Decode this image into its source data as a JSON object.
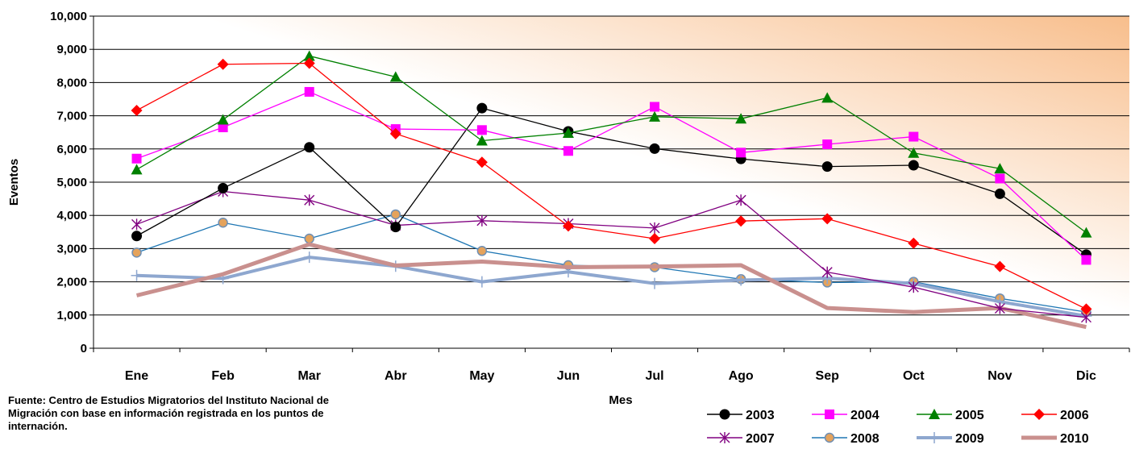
{
  "chart_data": {
    "type": "line",
    "xlabel": "Mes",
    "ylabel": "Eventos",
    "ylim": [
      0,
      10000
    ],
    "yticks": [
      "0",
      "1,000",
      "2,000",
      "3,000",
      "4,000",
      "5,000",
      "6,000",
      "7,000",
      "8,000",
      "9,000",
      "10,000"
    ],
    "ytick_values": [
      0,
      1000,
      2000,
      3000,
      4000,
      5000,
      6000,
      7000,
      8000,
      9000,
      10000
    ],
    "categories": [
      "Ene",
      "Feb",
      "Mar",
      "Abr",
      "May",
      "Jun",
      "Jul",
      "Ago",
      "Sep",
      "Oct",
      "Nov",
      "Dic"
    ],
    "grid": "horizontal",
    "legend_position": "bottom-right",
    "series": [
      {
        "name": "2003",
        "color": "#000000",
        "marker": "circle",
        "values": [
          3380,
          4820,
          6050,
          3650,
          7230,
          6530,
          6010,
          5700,
          5470,
          5510,
          4650,
          2820
        ]
      },
      {
        "name": "2004",
        "color": "#ff00ff",
        "marker": "square",
        "values": [
          5710,
          6650,
          7720,
          6600,
          6570,
          5940,
          7270,
          5890,
          6140,
          6370,
          5110,
          2660
        ]
      },
      {
        "name": "2005",
        "color": "#008000",
        "marker": "triangle",
        "values": [
          5380,
          6880,
          8800,
          8170,
          6250,
          6480,
          6970,
          6910,
          7540,
          5880,
          5410,
          3480
        ]
      },
      {
        "name": "2006",
        "color": "#ff0000",
        "marker": "diamond",
        "values": [
          7160,
          8550,
          8580,
          6460,
          5600,
          3680,
          3300,
          3830,
          3900,
          3160,
          2460,
          1180
        ]
      },
      {
        "name": "2007",
        "color": "#800080",
        "marker": "star",
        "values": [
          3730,
          4720,
          4460,
          3700,
          3840,
          3750,
          3620,
          4460,
          2290,
          1840,
          1200,
          930
        ]
      },
      {
        "name": "2008",
        "color": "#1f77b4",
        "marker": "circle-orange",
        "values": [
          2880,
          3780,
          3300,
          4030,
          2930,
          2500,
          2440,
          2080,
          1980,
          2000,
          1500,
          1090
        ]
      },
      {
        "name": "2009",
        "color": "#8ea7cf",
        "marker": "plus",
        "values": [
          2190,
          2100,
          2740,
          2470,
          2000,
          2300,
          1950,
          2050,
          2110,
          1950,
          1400,
          970
        ]
      },
      {
        "name": "2010",
        "color": "#c9908e",
        "marker": "none",
        "values": [
          1590,
          2230,
          3130,
          2490,
          2610,
          2440,
          2460,
          2500,
          1210,
          1090,
          1210,
          640
        ]
      }
    ]
  },
  "source_note": "Fuente: Centro de Estudios Migratorios del Instituto Nacional de Migración con base en información registrada en los puntos de internación."
}
